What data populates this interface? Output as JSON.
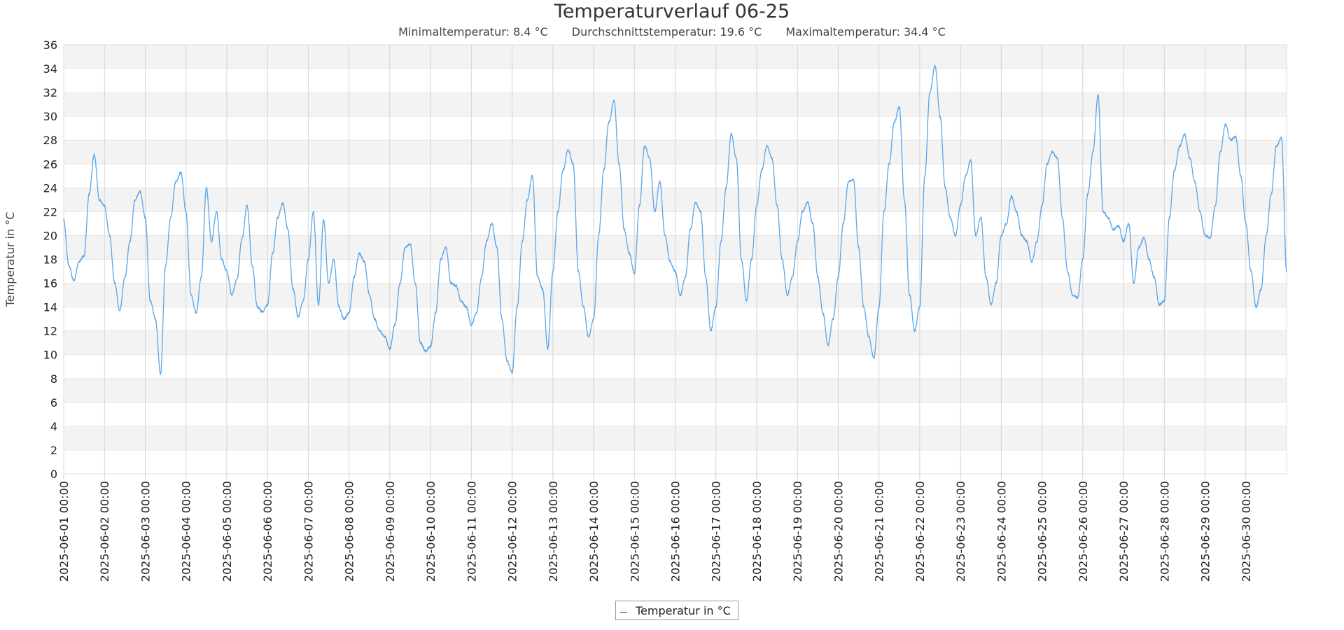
{
  "title": "Temperaturverlauf 06-25",
  "stats": {
    "min": "Minimaltemperatur: 8.4 °C",
    "avg": "Durchschnittstemperatur: 19.6 °C",
    "max": "Maximaltemperatur: 34.4 °C"
  },
  "chart_data": {
    "type": "line",
    "title": "Temperaturverlauf 06-25",
    "ylabel": "Temperatur in °C",
    "xlabel": "",
    "ylim": [
      0,
      36
    ],
    "yticks": [
      0,
      2,
      4,
      6,
      8,
      10,
      12,
      14,
      16,
      18,
      20,
      22,
      24,
      26,
      28,
      30,
      32,
      34,
      36
    ],
    "xlim": [
      "2025-06-01 00:00",
      "2025-07-01 00:00"
    ],
    "xticks": [
      "2025-06-01 00:00",
      "2025-06-02 00:00",
      "2025-06-03 00:00",
      "2025-06-04 00:00",
      "2025-06-05 00:00",
      "2025-06-06 00:00",
      "2025-06-07 00:00",
      "2025-06-08 00:00",
      "2025-06-09 00:00",
      "2025-06-10 00:00",
      "2025-06-11 00:00",
      "2025-06-12 00:00",
      "2025-06-13 00:00",
      "2025-06-14 00:00",
      "2025-06-15 00:00",
      "2025-06-16 00:00",
      "2025-06-17 00:00",
      "2025-06-18 00:00",
      "2025-06-19 00:00",
      "2025-06-20 00:00",
      "2025-06-21 00:00",
      "2025-06-22 00:00",
      "2025-06-23 00:00",
      "2025-06-24 00:00",
      "2025-06-25 00:00",
      "2025-06-26 00:00",
      "2025-06-27 00:00",
      "2025-06-28 00:00",
      "2025-06-29 00:00",
      "2025-06-30 00:00"
    ],
    "grid": "horizontal alternating bands and vertical lines",
    "legend": "bottom-center",
    "series": [
      {
        "name": "Temperatur in °C",
        "color": "#5aa6e8",
        "points": [
          [
            "2025-06-01 00:00",
            21.3
          ],
          [
            "2025-06-01 03:00",
            17.5
          ],
          [
            "2025-06-01 06:00",
            16.2
          ],
          [
            "2025-06-01 09:00",
            17.8
          ],
          [
            "2025-06-01 12:00",
            18.3
          ],
          [
            "2025-06-01 15:00",
            23.5
          ],
          [
            "2025-06-01 18:00",
            26.8
          ],
          [
            "2025-06-01 21:00",
            23.0
          ],
          [
            "2025-06-02 00:00",
            22.5
          ],
          [
            "2025-06-02 03:00",
            20.0
          ],
          [
            "2025-06-02 06:00",
            16.0
          ],
          [
            "2025-06-02 09:00",
            13.7
          ],
          [
            "2025-06-02 12:00",
            16.5
          ],
          [
            "2025-06-02 15:00",
            19.5
          ],
          [
            "2025-06-02 18:00",
            23.0
          ],
          [
            "2025-06-02 21:00",
            23.7
          ],
          [
            "2025-06-03 00:00",
            21.5
          ],
          [
            "2025-06-03 03:00",
            14.5
          ],
          [
            "2025-06-03 06:00",
            13.0
          ],
          [
            "2025-06-03 09:00",
            8.4
          ],
          [
            "2025-06-03 12:00",
            17.5
          ],
          [
            "2025-06-03 15:00",
            21.5
          ],
          [
            "2025-06-03 18:00",
            24.5
          ],
          [
            "2025-06-03 21:00",
            25.3
          ],
          [
            "2025-06-04 00:00",
            22.0
          ],
          [
            "2025-06-04 03:00",
            15.0
          ],
          [
            "2025-06-04 06:00",
            13.5
          ],
          [
            "2025-06-04 09:00",
            16.5
          ],
          [
            "2025-06-04 12:00",
            24.0
          ],
          [
            "2025-06-04 15:00",
            19.5
          ],
          [
            "2025-06-04 18:00",
            22.0
          ],
          [
            "2025-06-04 21:00",
            18.0
          ],
          [
            "2025-06-05 00:00",
            17.0
          ],
          [
            "2025-06-05 03:00",
            15.0
          ],
          [
            "2025-06-05 06:00",
            16.3
          ],
          [
            "2025-06-05 09:00",
            19.8
          ],
          [
            "2025-06-05 12:00",
            22.5
          ],
          [
            "2025-06-05 15:00",
            17.5
          ],
          [
            "2025-06-05 18:00",
            14.0
          ],
          [
            "2025-06-05 21:00",
            13.6
          ],
          [
            "2025-06-06 00:00",
            14.2
          ],
          [
            "2025-06-06 03:00",
            18.5
          ],
          [
            "2025-06-06 06:00",
            21.5
          ],
          [
            "2025-06-06 09:00",
            22.7
          ],
          [
            "2025-06-06 12:00",
            20.5
          ],
          [
            "2025-06-06 15:00",
            15.5
          ],
          [
            "2025-06-06 18:00",
            13.2
          ],
          [
            "2025-06-06 21:00",
            14.5
          ],
          [
            "2025-06-07 00:00",
            18.0
          ],
          [
            "2025-06-07 03:00",
            22.0
          ],
          [
            "2025-06-07 06:00",
            14.2
          ],
          [
            "2025-06-07 09:00",
            21.3
          ],
          [
            "2025-06-07 12:00",
            16.0
          ],
          [
            "2025-06-07 15:00",
            18.0
          ],
          [
            "2025-06-07 18:00",
            14.0
          ],
          [
            "2025-06-07 21:00",
            13.0
          ],
          [
            "2025-06-08 00:00",
            13.5
          ],
          [
            "2025-06-08 03:00",
            16.5
          ],
          [
            "2025-06-08 06:00",
            18.5
          ],
          [
            "2025-06-08 09:00",
            17.8
          ],
          [
            "2025-06-08 12:00",
            15.0
          ],
          [
            "2025-06-08 15:00",
            13.0
          ],
          [
            "2025-06-08 18:00",
            12.0
          ],
          [
            "2025-06-08 21:00",
            11.5
          ],
          [
            "2025-06-09 00:00",
            10.5
          ],
          [
            "2025-06-09 03:00",
            12.5
          ],
          [
            "2025-06-09 06:00",
            16.0
          ],
          [
            "2025-06-09 09:00",
            19.0
          ],
          [
            "2025-06-09 12:00",
            19.3
          ],
          [
            "2025-06-09 15:00",
            16.0
          ],
          [
            "2025-06-09 18:00",
            11.0
          ],
          [
            "2025-06-09 21:00",
            10.3
          ],
          [
            "2025-06-10 00:00",
            10.7
          ],
          [
            "2025-06-10 03:00",
            13.5
          ],
          [
            "2025-06-10 06:00",
            18.0
          ],
          [
            "2025-06-10 09:00",
            19.0
          ],
          [
            "2025-06-10 12:00",
            16.0
          ],
          [
            "2025-06-10 15:00",
            15.8
          ],
          [
            "2025-06-10 18:00",
            14.5
          ],
          [
            "2025-06-10 21:00",
            14.0
          ],
          [
            "2025-06-11 00:00",
            12.5
          ],
          [
            "2025-06-11 03:00",
            13.5
          ],
          [
            "2025-06-11 06:00",
            16.5
          ],
          [
            "2025-06-11 09:00",
            19.5
          ],
          [
            "2025-06-11 12:00",
            21.0
          ],
          [
            "2025-06-11 15:00",
            19.0
          ],
          [
            "2025-06-11 18:00",
            13.0
          ],
          [
            "2025-06-11 21:00",
            9.5
          ],
          [
            "2025-06-12 00:00",
            8.5
          ],
          [
            "2025-06-12 03:00",
            14.0
          ],
          [
            "2025-06-12 06:00",
            19.5
          ],
          [
            "2025-06-12 09:00",
            23.0
          ],
          [
            "2025-06-12 12:00",
            25.0
          ],
          [
            "2025-06-12 15:00",
            16.5
          ],
          [
            "2025-06-12 18:00",
            15.5
          ],
          [
            "2025-06-12 21:00",
            10.5
          ],
          [
            "2025-06-13 00:00",
            17.0
          ],
          [
            "2025-06-13 03:00",
            22.0
          ],
          [
            "2025-06-13 06:00",
            25.5
          ],
          [
            "2025-06-13 09:00",
            27.2
          ],
          [
            "2025-06-13 12:00",
            26.0
          ],
          [
            "2025-06-13 15:00",
            17.0
          ],
          [
            "2025-06-13 18:00",
            14.0
          ],
          [
            "2025-06-13 21:00",
            11.5
          ],
          [
            "2025-06-14 00:00",
            13.0
          ],
          [
            "2025-06-14 03:00",
            20.0
          ],
          [
            "2025-06-14 06:00",
            25.5
          ],
          [
            "2025-06-14 09:00",
            29.5
          ],
          [
            "2025-06-14 12:00",
            31.3
          ],
          [
            "2025-06-14 15:00",
            26.0
          ],
          [
            "2025-06-14 18:00",
            20.5
          ],
          [
            "2025-06-14 21:00",
            18.5
          ],
          [
            "2025-06-15 00:00",
            16.8
          ],
          [
            "2025-06-15 03:00",
            22.5
          ],
          [
            "2025-06-15 06:00",
            27.5
          ],
          [
            "2025-06-15 09:00",
            26.5
          ],
          [
            "2025-06-15 12:00",
            22.0
          ],
          [
            "2025-06-15 15:00",
            24.5
          ],
          [
            "2025-06-15 18:00",
            20.0
          ],
          [
            "2025-06-15 21:00",
            17.8
          ],
          [
            "2025-06-16 00:00",
            17.0
          ],
          [
            "2025-06-16 03:00",
            15.0
          ],
          [
            "2025-06-16 06:00",
            16.5
          ],
          [
            "2025-06-16 09:00",
            20.5
          ],
          [
            "2025-06-16 12:00",
            22.8
          ],
          [
            "2025-06-16 15:00",
            22.0
          ],
          [
            "2025-06-16 18:00",
            16.5
          ],
          [
            "2025-06-16 21:00",
            12.0
          ],
          [
            "2025-06-17 00:00",
            14.0
          ],
          [
            "2025-06-17 03:00",
            19.5
          ],
          [
            "2025-06-17 06:00",
            24.0
          ],
          [
            "2025-06-17 09:00",
            28.5
          ],
          [
            "2025-06-17 12:00",
            26.5
          ],
          [
            "2025-06-17 15:00",
            18.0
          ],
          [
            "2025-06-17 18:00",
            14.5
          ],
          [
            "2025-06-17 21:00",
            18.0
          ],
          [
            "2025-06-18 00:00",
            22.5
          ],
          [
            "2025-06-18 03:00",
            25.5
          ],
          [
            "2025-06-18 06:00",
            27.5
          ],
          [
            "2025-06-18 09:00",
            26.5
          ],
          [
            "2025-06-18 12:00",
            22.5
          ],
          [
            "2025-06-18 15:00",
            18.0
          ],
          [
            "2025-06-18 18:00",
            15.0
          ],
          [
            "2025-06-18 21:00",
            16.5
          ],
          [
            "2025-06-19 00:00",
            19.5
          ],
          [
            "2025-06-19 03:00",
            22.0
          ],
          [
            "2025-06-19 06:00",
            22.8
          ],
          [
            "2025-06-19 09:00",
            21.0
          ],
          [
            "2025-06-19 12:00",
            16.5
          ],
          [
            "2025-06-19 15:00",
            13.5
          ],
          [
            "2025-06-19 18:00",
            10.8
          ],
          [
            "2025-06-19 21:00",
            13.0
          ],
          [
            "2025-06-20 00:00",
            16.5
          ],
          [
            "2025-06-20 03:00",
            21.0
          ],
          [
            "2025-06-20 06:00",
            24.5
          ],
          [
            "2025-06-20 09:00",
            24.7
          ],
          [
            "2025-06-20 12:00",
            19.0
          ],
          [
            "2025-06-20 15:00",
            14.0
          ],
          [
            "2025-06-20 18:00",
            11.5
          ],
          [
            "2025-06-20 21:00",
            9.7
          ],
          [
            "2025-06-21 00:00",
            14.0
          ],
          [
            "2025-06-21 03:00",
            22.0
          ],
          [
            "2025-06-21 06:00",
            26.0
          ],
          [
            "2025-06-21 09:00",
            29.5
          ],
          [
            "2025-06-21 12:00",
            30.8
          ],
          [
            "2025-06-21 15:00",
            23.0
          ],
          [
            "2025-06-21 18:00",
            15.0
          ],
          [
            "2025-06-21 21:00",
            12.0
          ],
          [
            "2025-06-22 00:00",
            14.0
          ],
          [
            "2025-06-22 03:00",
            25.0
          ],
          [
            "2025-06-22 06:00",
            32.0
          ],
          [
            "2025-06-22 09:00",
            34.2
          ],
          [
            "2025-06-22 12:00",
            30.0
          ],
          [
            "2025-06-22 15:00",
            24.0
          ],
          [
            "2025-06-22 18:00",
            21.5
          ],
          [
            "2025-06-22 21:00",
            20.0
          ],
          [
            "2025-06-23 00:00",
            22.5
          ],
          [
            "2025-06-23 03:00",
            25.0
          ],
          [
            "2025-06-23 06:00",
            26.3
          ],
          [
            "2025-06-23 09:00",
            20.0
          ],
          [
            "2025-06-23 12:00",
            21.5
          ],
          [
            "2025-06-23 15:00",
            16.5
          ],
          [
            "2025-06-23 18:00",
            14.2
          ],
          [
            "2025-06-23 21:00",
            16.0
          ],
          [
            "2025-06-24 00:00",
            20.0
          ],
          [
            "2025-06-24 03:00",
            21.0
          ],
          [
            "2025-06-24 06:00",
            23.3
          ],
          [
            "2025-06-24 09:00",
            22.0
          ],
          [
            "2025-06-24 12:00",
            20.0
          ],
          [
            "2025-06-24 15:00",
            19.5
          ],
          [
            "2025-06-24 18:00",
            17.8
          ],
          [
            "2025-06-24 21:00",
            19.5
          ],
          [
            "2025-06-25 00:00",
            22.5
          ],
          [
            "2025-06-25 03:00",
            26.0
          ],
          [
            "2025-06-25 06:00",
            27.0
          ],
          [
            "2025-06-25 09:00",
            26.5
          ],
          [
            "2025-06-25 12:00",
            21.5
          ],
          [
            "2025-06-25 15:00",
            17.0
          ],
          [
            "2025-06-25 18:00",
            15.0
          ],
          [
            "2025-06-25 21:00",
            14.8
          ],
          [
            "2025-06-26 00:00",
            18.0
          ],
          [
            "2025-06-26 03:00",
            23.5
          ],
          [
            "2025-06-26 06:00",
            27.0
          ],
          [
            "2025-06-26 09:00",
            31.8
          ],
          [
            "2025-06-26 12:00",
            22.0
          ],
          [
            "2025-06-26 15:00",
            21.5
          ],
          [
            "2025-06-26 18:00",
            20.5
          ],
          [
            "2025-06-26 21:00",
            20.8
          ],
          [
            "2025-06-27 00:00",
            19.5
          ],
          [
            "2025-06-27 03:00",
            21.0
          ],
          [
            "2025-06-27 06:00",
            16.0
          ],
          [
            "2025-06-27 09:00",
            19.0
          ],
          [
            "2025-06-27 12:00",
            19.8
          ],
          [
            "2025-06-27 15:00",
            18.0
          ],
          [
            "2025-06-27 18:00",
            16.5
          ],
          [
            "2025-06-27 21:00",
            14.2
          ],
          [
            "2025-06-28 00:00",
            14.5
          ],
          [
            "2025-06-28 03:00",
            21.5
          ],
          [
            "2025-06-28 06:00",
            25.5
          ],
          [
            "2025-06-28 09:00",
            27.5
          ],
          [
            "2025-06-28 12:00",
            28.5
          ],
          [
            "2025-06-28 15:00",
            26.5
          ],
          [
            "2025-06-28 18:00",
            24.5
          ],
          [
            "2025-06-28 21:00",
            22.0
          ],
          [
            "2025-06-29 00:00",
            20.0
          ],
          [
            "2025-06-29 03:00",
            19.8
          ],
          [
            "2025-06-29 06:00",
            22.5
          ],
          [
            "2025-06-29 09:00",
            27.0
          ],
          [
            "2025-06-29 12:00",
            29.3
          ],
          [
            "2025-06-29 15:00",
            28.0
          ],
          [
            "2025-06-29 18:00",
            28.3
          ],
          [
            "2025-06-29 21:00",
            25.0
          ],
          [
            "2025-06-30 00:00",
            21.0
          ],
          [
            "2025-06-30 03:00",
            17.0
          ],
          [
            "2025-06-30 06:00",
            14.0
          ],
          [
            "2025-06-30 09:00",
            15.5
          ],
          [
            "2025-06-30 12:00",
            20.0
          ],
          [
            "2025-06-30 15:00",
            23.5
          ],
          [
            "2025-06-30 18:00",
            27.5
          ],
          [
            "2025-06-30 21:00",
            28.2
          ],
          [
            "2025-07-01 00:00",
            17.0
          ]
        ]
      }
    ]
  },
  "legend": {
    "label": "Temperatur in °C"
  }
}
